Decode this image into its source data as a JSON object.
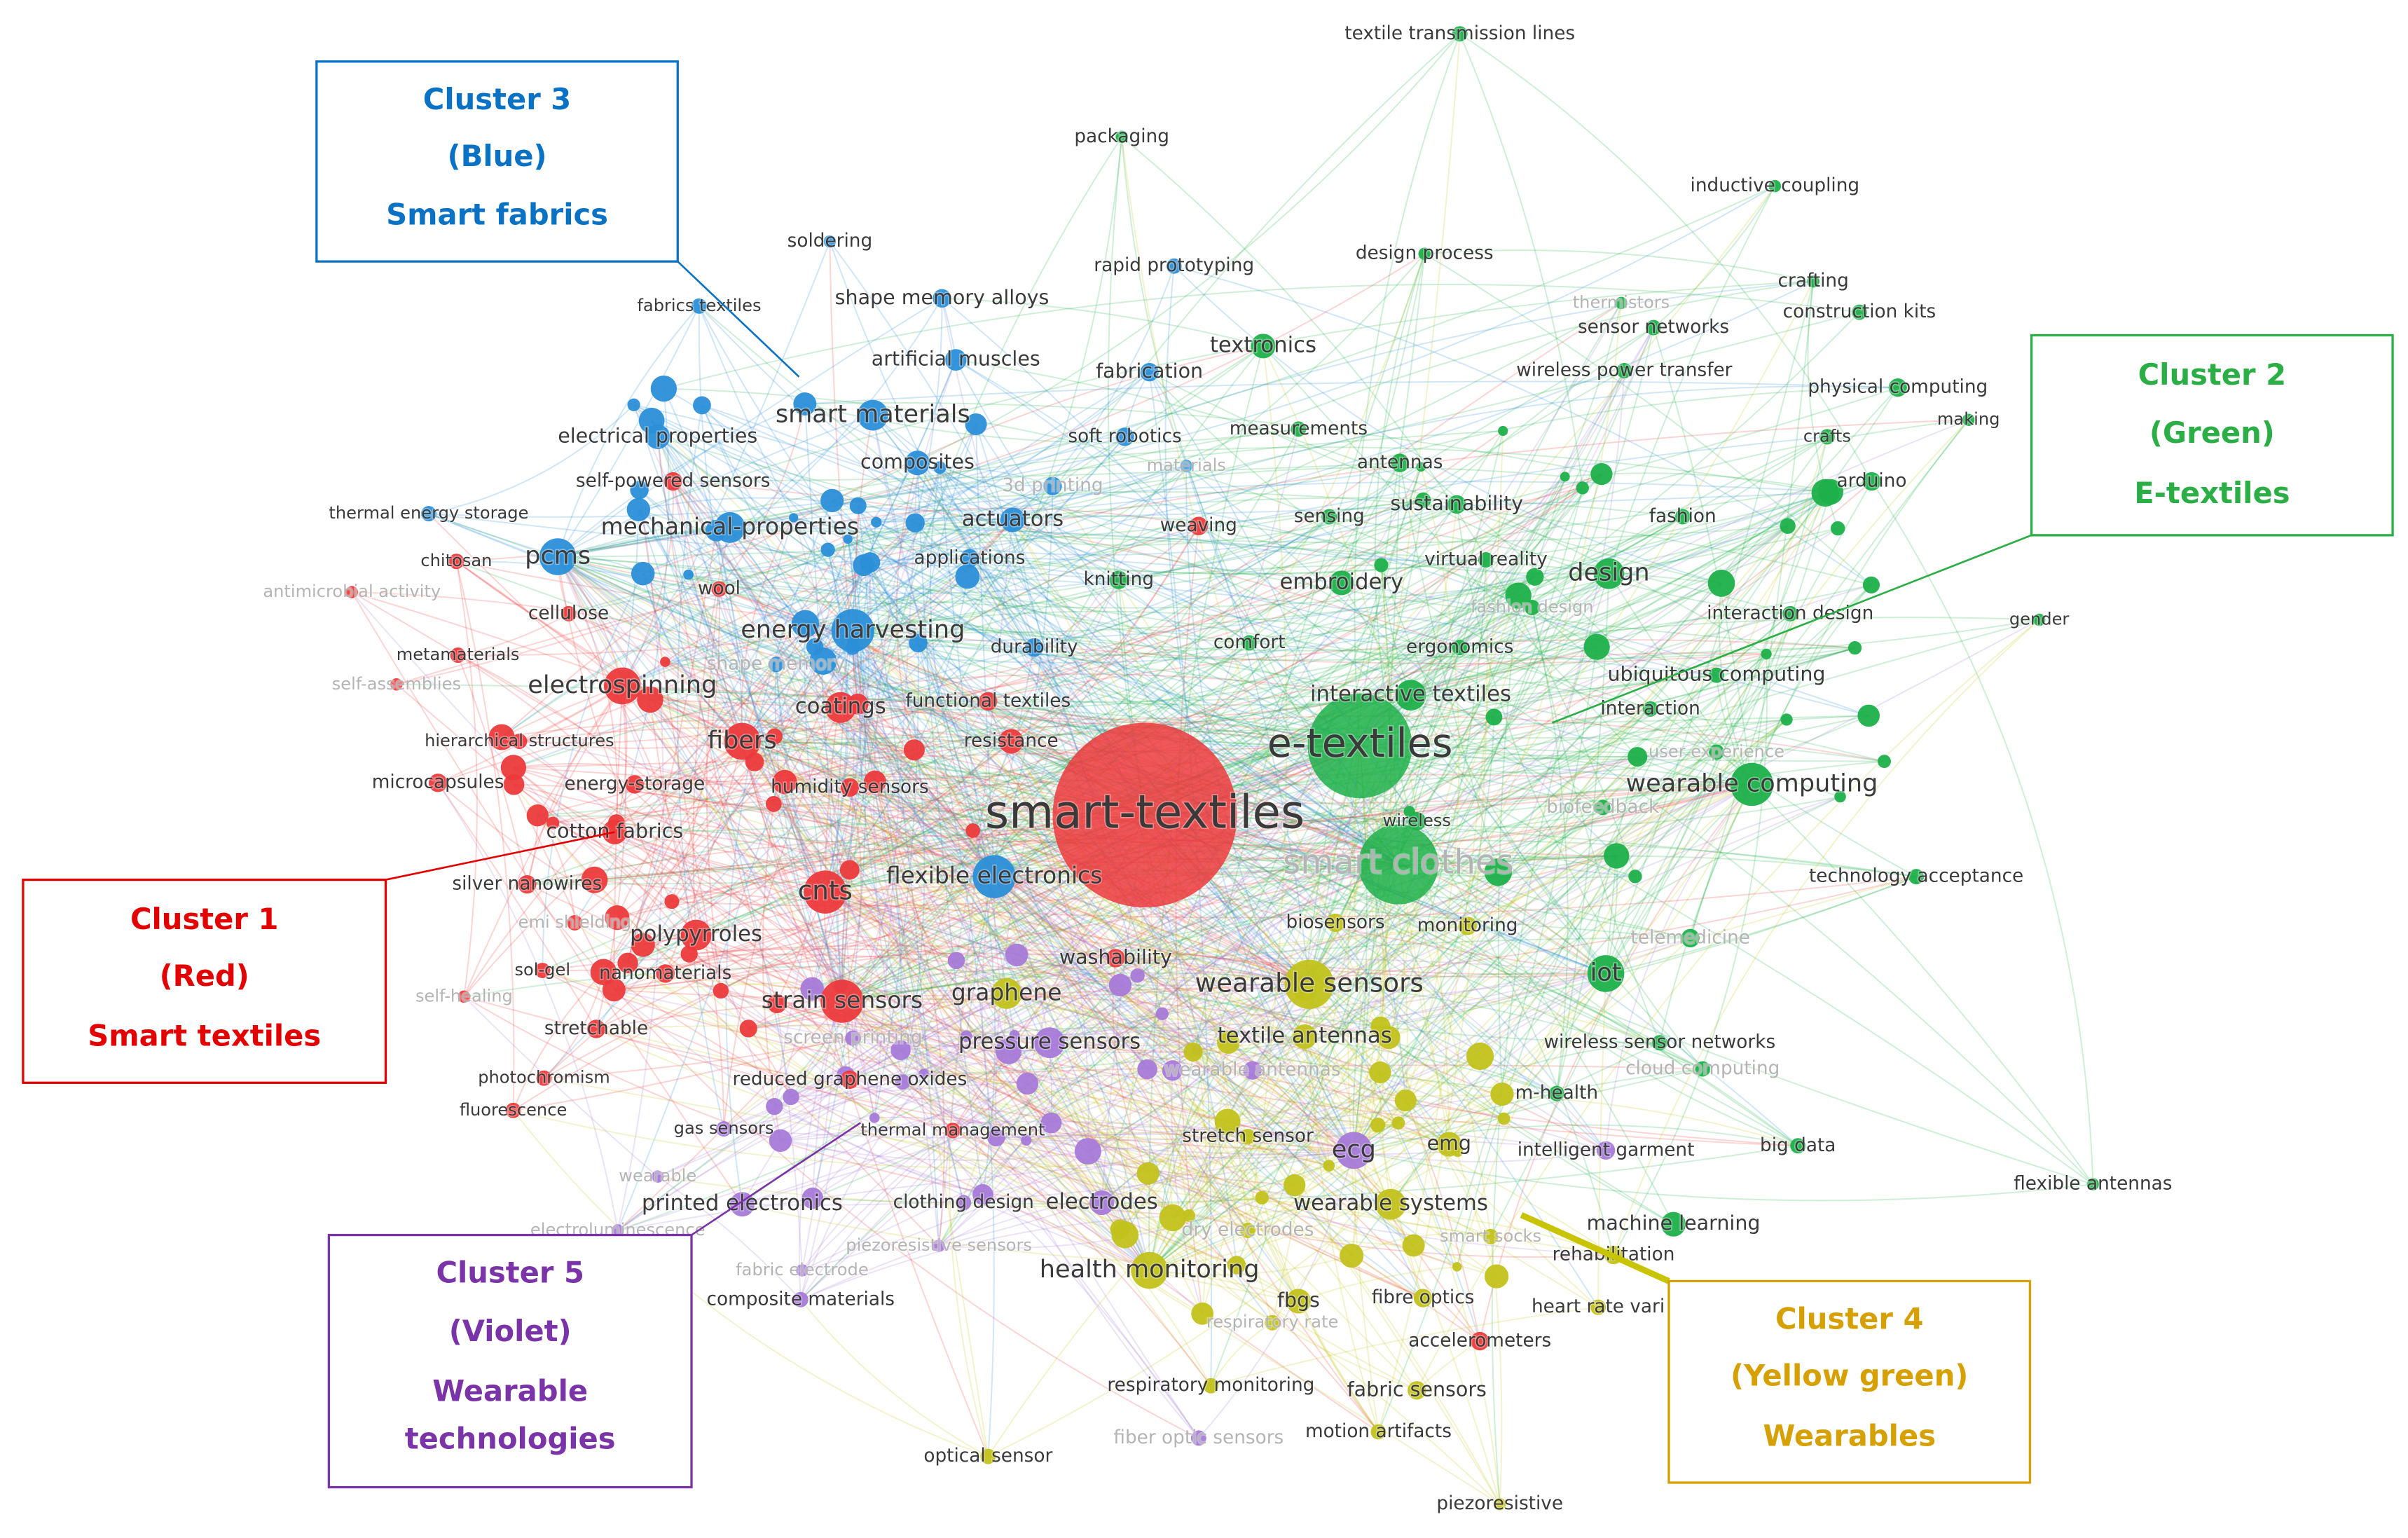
{
  "clusters": [
    {
      "lines": [
        "Cluster 1",
        "(Red)",
        "Smart textiles"
      ],
      "nodes": [
        "smart-textiles",
        "fibers",
        "cnts",
        "coatings",
        "polypyrroles",
        "strain sensors",
        "nanomaterials",
        "silver nanowires",
        "cotton fabrics",
        "microcapsules",
        "energy-storage",
        "hierarchical structures",
        "electrospinning",
        "self-powered sensors",
        "weaving",
        "chitosan",
        "antimicrobial activity",
        "wool",
        "cellulose",
        "self-assemblies",
        "sol-gel",
        "stretchable",
        "self-healing",
        "photochromism",
        "fluorescence",
        "reduced graphene oxides",
        "emi shielding",
        "humidity sensors",
        "resistance",
        "functional textiles",
        "accelerometers",
        "thermal management",
        "washability",
        "metamaterials"
      ]
    },
    {
      "lines": [
        "Cluster 2",
        "(Green)",
        "E-textiles"
      ],
      "nodes": [
        "e-textiles",
        "smart clothes",
        "design",
        "wearable computing",
        "iot",
        "textronics",
        "textile transmission lines",
        "packaging",
        "inductive coupling",
        "design process",
        "sensor networks",
        "crafting",
        "construction kits",
        "wireless power transfer",
        "physical computing",
        "making",
        "crafts",
        "arduino",
        "antennas",
        "sustainability",
        "fashion",
        "virtual reality",
        "embroidery",
        "interaction design",
        "gender",
        "ubiquitous computing",
        "interaction",
        "ergonomics",
        "user experience",
        "technology acceptance",
        "telemedicine",
        "wireless sensor networks",
        "m-health",
        "big data",
        "flexible antennas",
        "machine learning",
        "knitting",
        "measurements",
        "sensing",
        "comfort",
        "wireless",
        "interactive textiles",
        "fashion design",
        "biofeedback",
        "cloud computing",
        "thermistors"
      ]
    },
    {
      "lines": [
        "Cluster 3",
        "(Blue)",
        "Smart fabrics"
      ],
      "nodes": [
        "smart materials",
        "pcms",
        "mechanical-properties",
        "energy harvesting",
        "electrical properties",
        "composites",
        "actuators",
        "applications",
        "thermal energy storage",
        "fabrics textiles",
        "soldering",
        "shape memory alloys",
        "artificial muscles",
        "fabrication",
        "rapid prototyping",
        "soft robotics",
        "3d printing",
        "flexible electronics",
        "durability",
        "materials",
        "shape memory"
      ]
    },
    {
      "lines": [
        "Cluster 4",
        "(Yellow green)",
        "Wearables"
      ],
      "nodes": [
        "wearable sensors",
        "emg",
        "wearable systems",
        "health monitoring",
        "fbgs",
        "fibre optics",
        "rehabilitation",
        "heart rate vari",
        "respiratory monitoring",
        "fabric sensors",
        "motion artifacts",
        "optical sensor",
        "piezoresistive",
        "textile antennas",
        "stretch sensor",
        "graphene",
        "smart socks",
        "respiratory rate",
        "dry electrodes",
        "biosensors",
        "monitoring"
      ]
    },
    {
      "lines": [
        "Cluster 5",
        "(Violet)",
        "Wearable",
        "technologies"
      ],
      "nodes": [
        "ecg",
        "pressure sensors",
        "printed electronics",
        "electrodes",
        "clothing design",
        "intelligent garment",
        "composite materials",
        "gas sensors",
        "fabric electrode",
        "piezoresistive sensors",
        "electroluminescence",
        "wearable",
        "screen printing",
        "wearable antennas",
        "fiber optic sensors"
      ]
    }
  ]
}
